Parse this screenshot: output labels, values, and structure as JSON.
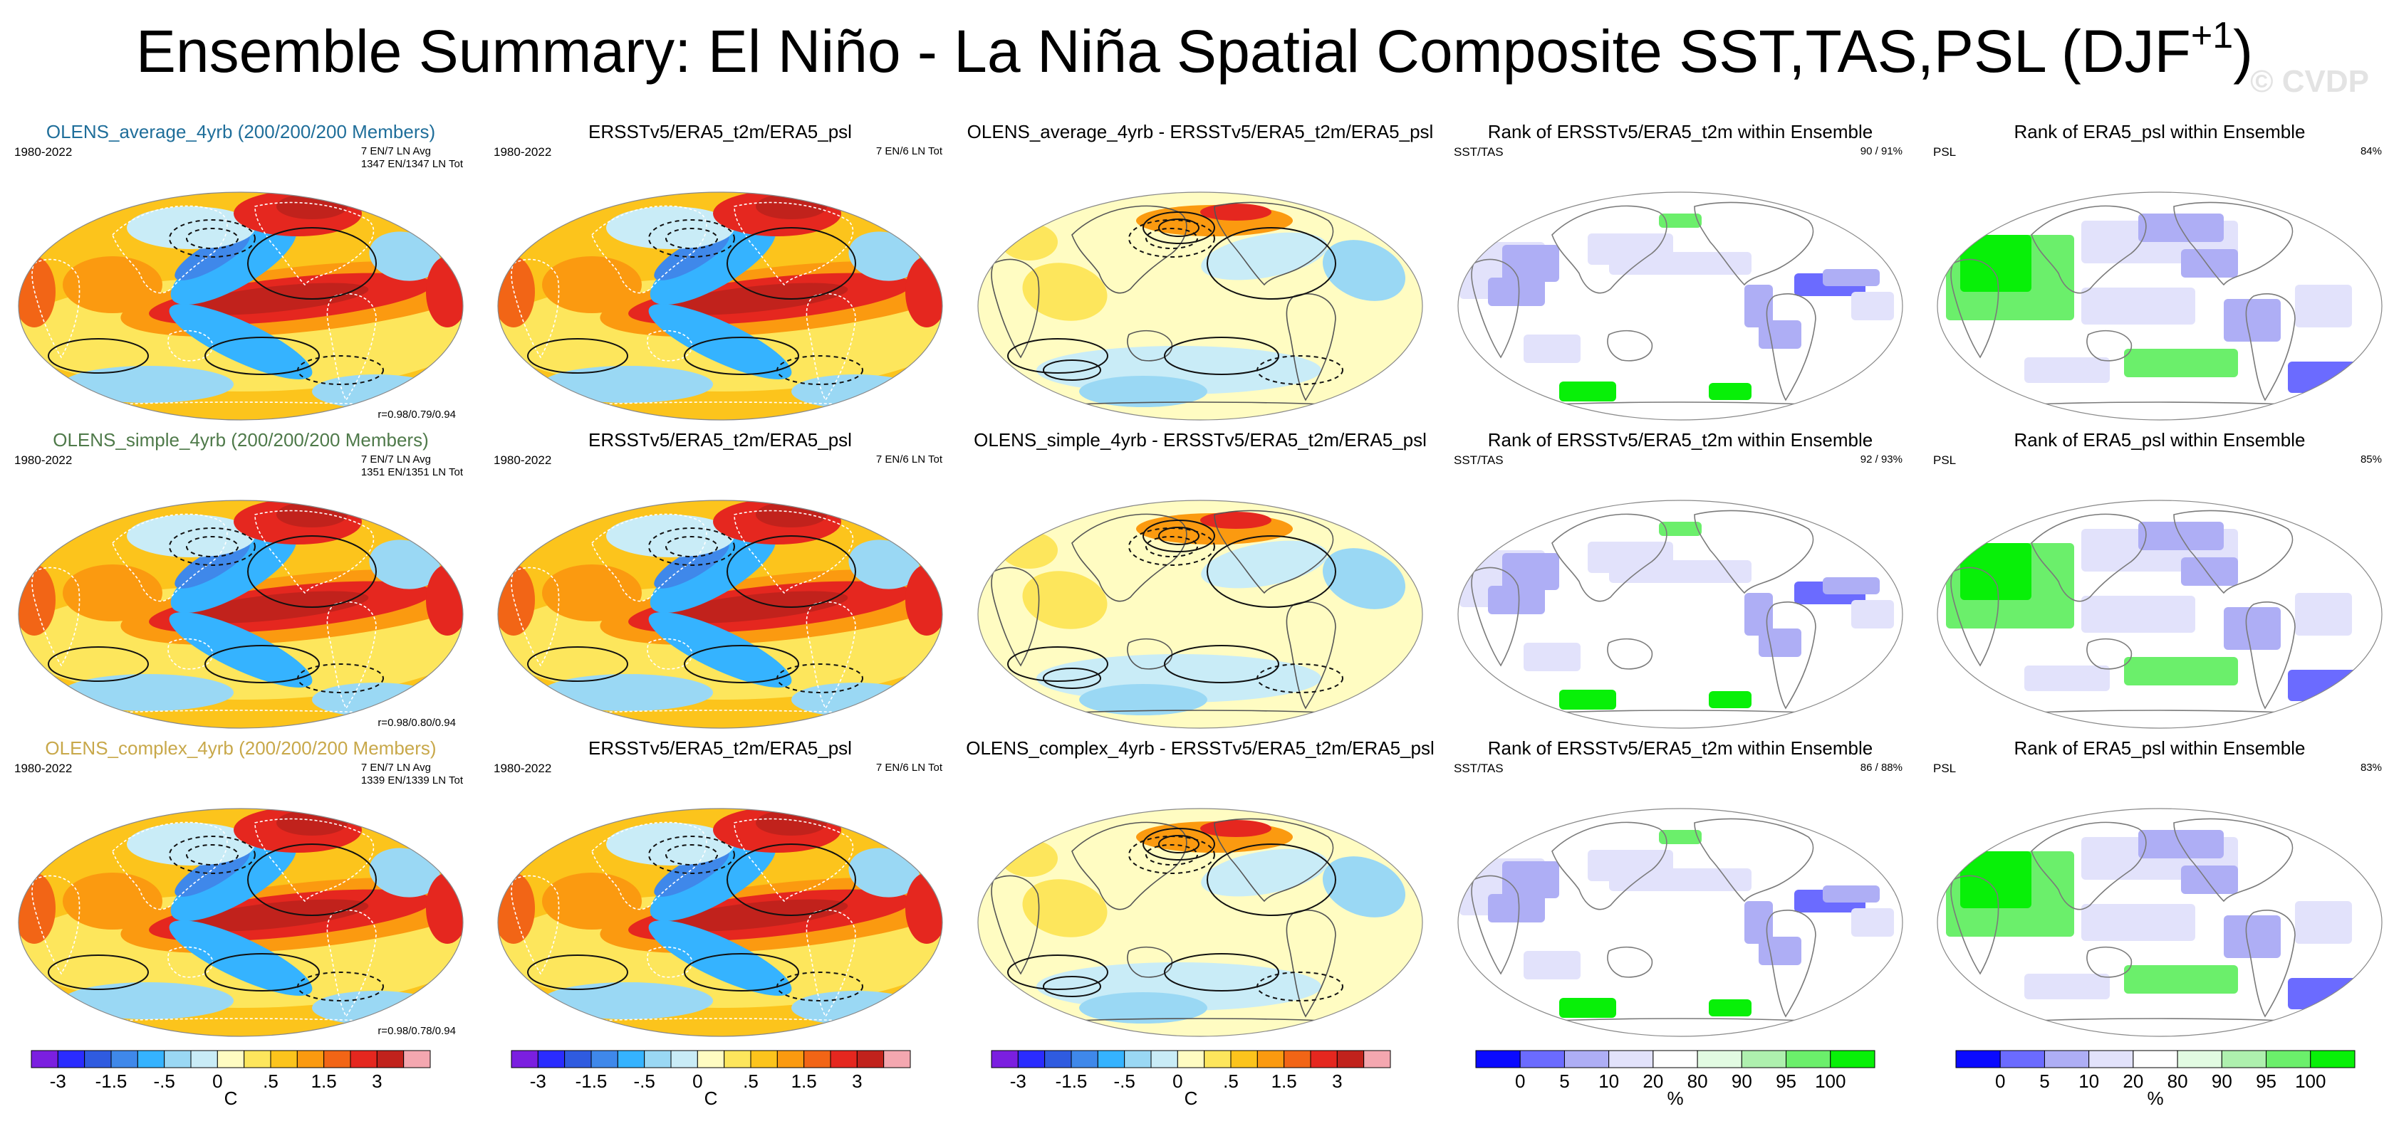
{
  "title": "Ensemble Summary: El Niño - La Niña Spatial Composite SST,TAS,PSL (DJF",
  "title_superscript": "+1",
  "title_suffix": ")",
  "watermark": "© CVDP",
  "colors": {
    "title_avg": "#1f6e9a",
    "title_simple": "#4f7a4a",
    "title_complex": "#c8a84a"
  },
  "rows": [
    {
      "panels": [
        {
          "title": "OLENS_average_4yrb (200/200/200 Members)",
          "title_color": "#1f6e9a",
          "left": "1980-2022",
          "right": [
            "7 EN/7 LN Avg",
            "1347 EN/1347 LN Tot"
          ],
          "corr": "r=0.98/0.79/0.94",
          "kind": "model"
        },
        {
          "title": "ERSSTv5/ERA5_t2m/ERA5_psl",
          "left": "1980-2022",
          "right": [
            "7 EN/6 LN Tot"
          ],
          "corr": "",
          "kind": "obs"
        },
        {
          "title": "OLENS_average_4yrb - ERSSTv5/ERA5_t2m/ERA5_psl",
          "left": "",
          "right": [],
          "corr": "",
          "kind": "diff"
        },
        {
          "title": "Rank of ERSSTv5/ERA5_t2m within Ensemble",
          "left": "SST/TAS",
          "right": [
            "90 /  91%"
          ],
          "corr": "",
          "kind": "rank"
        },
        {
          "title": "Rank of ERA5_psl within Ensemble",
          "left": "PSL",
          "right": [
            "84%"
          ],
          "corr": "",
          "kind": "rankpsl"
        }
      ]
    },
    {
      "panels": [
        {
          "title": "OLENS_simple_4yrb (200/200/200 Members)",
          "title_color": "#4f7a4a",
          "left": "1980-2022",
          "right": [
            "7 EN/7 LN Avg",
            "1351 EN/1351 LN Tot"
          ],
          "corr": "r=0.98/0.80/0.94",
          "kind": "model"
        },
        {
          "title": "ERSSTv5/ERA5_t2m/ERA5_psl",
          "left": "1980-2022",
          "right": [
            "7 EN/6 LN Tot"
          ],
          "corr": "",
          "kind": "obs"
        },
        {
          "title": "OLENS_simple_4yrb - ERSSTv5/ERA5_t2m/ERA5_psl",
          "left": "",
          "right": [],
          "corr": "",
          "kind": "diff"
        },
        {
          "title": "Rank of ERSSTv5/ERA5_t2m within Ensemble",
          "left": "SST/TAS",
          "right": [
            "92 /  93%"
          ],
          "corr": "",
          "kind": "rank"
        },
        {
          "title": "Rank of ERA5_psl within Ensemble",
          "left": "PSL",
          "right": [
            "85%"
          ],
          "corr": "",
          "kind": "rankpsl"
        }
      ]
    },
    {
      "panels": [
        {
          "title": "OLENS_complex_4yrb (200/200/200 Members)",
          "title_color": "#c8a84a",
          "left": "1980-2022",
          "right": [
            "7 EN/7 LN Avg",
            "1339 EN/1339 LN Tot"
          ],
          "corr": "r=0.98/0.78/0.94",
          "kind": "model"
        },
        {
          "title": "ERSSTv5/ERA5_t2m/ERA5_psl",
          "left": "1980-2022",
          "right": [
            "7 EN/6 LN Tot"
          ],
          "corr": "",
          "kind": "obs"
        },
        {
          "title": "OLENS_complex_4yrb - ERSSTv5/ERA5_t2m/ERA5_psl",
          "left": "",
          "right": [],
          "corr": "",
          "kind": "diff"
        },
        {
          "title": "Rank of ERSSTv5/ERA5_t2m within Ensemble",
          "left": "SST/TAS",
          "right": [
            "86 /  88%"
          ],
          "corr": "",
          "kind": "rank"
        },
        {
          "title": "Rank of ERA5_psl within Ensemble",
          "left": "PSL",
          "right": [
            "83%"
          ],
          "corr": "",
          "kind": "rankpsl"
        }
      ]
    }
  ],
  "chart_data": {
    "type": "heatmap",
    "title": "Ensemble Summary: El Niño - La Niña Spatial Composite SST,TAS,PSL (DJF+1)",
    "projection": "Robinson (global)",
    "temperature_colorbar": {
      "unit": "C",
      "tick_labels": [
        "-3",
        "-1.5",
        "-.5",
        "0",
        ".5",
        "1.5",
        "3"
      ],
      "colors": [
        "#7b1fe0",
        "#2a2cff",
        "#2f5be0",
        "#3f88ea",
        "#35b3ff",
        "#9ad8f4",
        "#c9ecf7",
        "#fffcc2",
        "#fde65c",
        "#fcc41c",
        "#fb9a10",
        "#f26516",
        "#e5271f",
        "#c1221c",
        "#f4a7b0"
      ]
    },
    "rank_colorbar": {
      "unit": "%",
      "tick_labels": [
        "0",
        "5",
        "10",
        "20",
        "80",
        "90",
        "95",
        "100"
      ],
      "colors": [
        "#0a0aff",
        "#6b6bff",
        "#aeaef5",
        "#e2e2fb",
        "#ffffff",
        "#e2fbe2",
        "#aef0ae",
        "#6bef6b",
        "#08f008"
      ]
    }
  }
}
